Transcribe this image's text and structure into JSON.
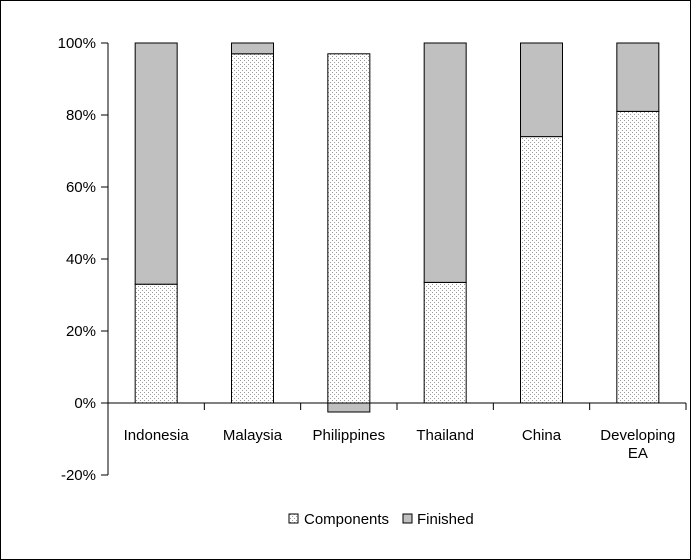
{
  "chart_data": {
    "type": "bar",
    "stacked": true,
    "title": "",
    "xlabel": "",
    "ylabel": "",
    "ylim": [
      -0.2,
      1.0
    ],
    "yticks": [
      {
        "value": 1.0,
        "label": "100%"
      },
      {
        "value": 0.8,
        "label": "80%"
      },
      {
        "value": 0.6,
        "label": "60%"
      },
      {
        "value": 0.4,
        "label": "40%"
      },
      {
        "value": 0.2,
        "label": "20%"
      },
      {
        "value": 0.0,
        "label": "0%"
      },
      {
        "value": -0.2,
        "label": "-20%"
      }
    ],
    "categories": [
      [
        "Indonesia"
      ],
      [
        "Malaysia"
      ],
      [
        "Philippines"
      ],
      [
        "Thailand"
      ],
      [
        "China"
      ],
      [
        "Developing",
        "EA"
      ]
    ],
    "series": [
      {
        "name": "Components",
        "values": [
          0.33,
          0.97,
          0.97,
          0.335,
          0.74,
          0.81
        ]
      },
      {
        "name": "Finished",
        "values": [
          0.67,
          0.03,
          -0.025,
          0.665,
          0.26,
          0.19
        ]
      }
    ],
    "colors": {
      "components_fill": "#ffffff",
      "components_dots": "#9a9a9a",
      "finished": "#c0c0c0",
      "stroke": "#000000"
    },
    "legend": {
      "placement": "bottom-center"
    },
    "grid": false
  }
}
